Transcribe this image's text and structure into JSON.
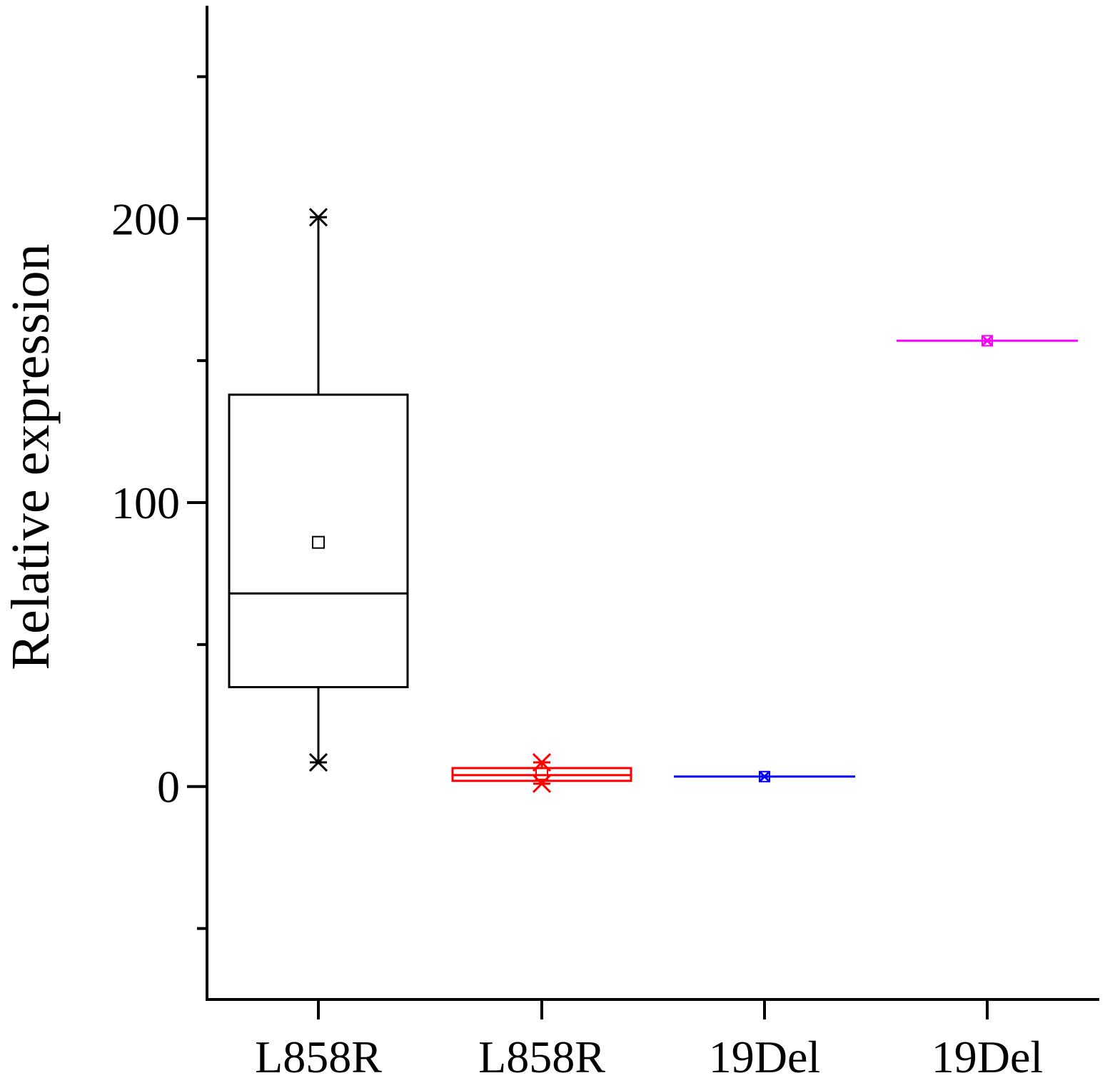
{
  "chart_data": {
    "type": "box",
    "ylabel": "Relative expression",
    "xlabel": "",
    "ylim": [
      -75,
      275
    ],
    "yticks": [
      0,
      100,
      200
    ],
    "yminor_ticks": [
      -50,
      50,
      150,
      250
    ],
    "categories": [
      "L858R",
      "L858R",
      "19Del",
      "19Del"
    ],
    "boxes": [
      {
        "label": "L858R",
        "color": "#000000",
        "min": 8.5,
        "q1": 35,
        "median": 68,
        "q3": 138,
        "max": 200.5,
        "mean": 86
      },
      {
        "label": "L858R",
        "color": "#ff0000",
        "min": 1,
        "q1": 2,
        "median": 4,
        "q3": 6.5,
        "max": 8.5,
        "mean": 4.5
      },
      {
        "label": "19Del",
        "color": "#0000ff",
        "min": 3.5,
        "q1": 3.5,
        "median": 3.5,
        "q3": 3.5,
        "max": 3.5,
        "mean": 3.5
      },
      {
        "label": "19Del",
        "color": "#ff00ff",
        "min": 157,
        "q1": 157,
        "median": 157,
        "q3": 157,
        "max": 157,
        "mean": 157
      }
    ],
    "grid": false,
    "legend": "none"
  }
}
